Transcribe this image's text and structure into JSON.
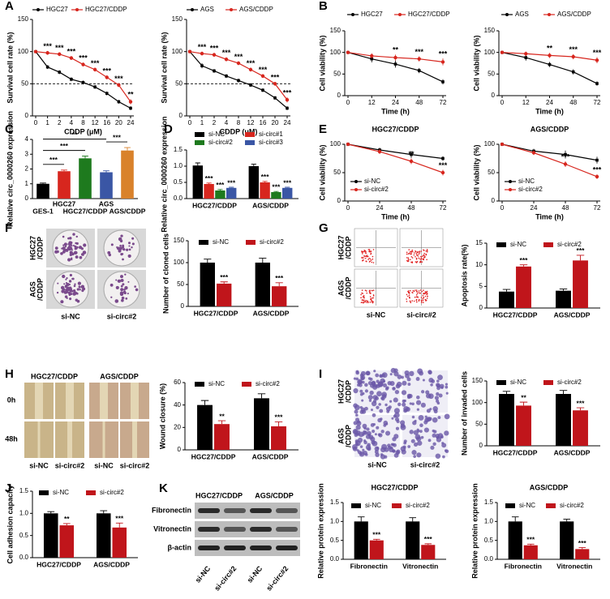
{
  "panel_labels": [
    "A",
    "B",
    "C",
    "D",
    "E",
    "F",
    "G",
    "H",
    "I",
    "J",
    "K"
  ],
  "image_panels": {
    "F": {
      "rows": [
        [
          "HGC27",
          "/CDDP"
        ],
        [
          "AGS",
          "/CDDP"
        ]
      ],
      "cols": [
        "si-NC",
        "si-circ#2"
      ]
    },
    "G": {
      "rows": [
        [
          "HGC27",
          "/CDDP"
        ],
        [
          "AGS",
          "/CDDP"
        ]
      ],
      "cols": [
        "si-NC",
        "si-circ#2"
      ]
    },
    "H": {
      "headers": [
        "HGC27/CDDP",
        "AGS/CDDP"
      ],
      "rows": [
        "0h",
        "48h"
      ],
      "cols": [
        "si-NC",
        "si-circ#2",
        "si-NC",
        "si-circ#2"
      ]
    },
    "I": {
      "rows": [
        [
          "HGC27",
          "/CDDP"
        ],
        [
          "AGS",
          "/CDDP"
        ]
      ],
      "cols": [
        "si-NC",
        "si-circ#2"
      ]
    },
    "K": {
      "headers": [
        "HGC27/CDDP",
        "AGS/CDDP"
      ],
      "rows": [
        "Fibronectin",
        "Vitronectin",
        "β-actin"
      ],
      "cols": [
        "si-NC",
        "si-circ#2",
        "si-NC",
        "si-circ#2"
      ]
    }
  },
  "chart_data": [
    {
      "type": "line",
      "xlabel": "CDDP (μM)",
      "ylabel": "Survival cell rate (%)",
      "categories": [
        "0",
        "1",
        "2",
        "4",
        "8",
        "12",
        "16",
        "20",
        "24"
      ],
      "ylim": [
        0,
        150
      ],
      "yticks": [
        0,
        50,
        100,
        150
      ],
      "reference_line": 50,
      "series": [
        {
          "name": "HGC27",
          "color": "#000000",
          "values": [
            100,
            76,
            68,
            57,
            52,
            45,
            35,
            22,
            12
          ],
          "errors": [
            2,
            3,
            3,
            3,
            3,
            3,
            3,
            3,
            3
          ]
        },
        {
          "name": "HGC27/CDDP",
          "color": "#d7261e",
          "values": [
            100,
            98,
            96,
            90,
            80,
            72,
            60,
            48,
            22
          ],
          "errors": [
            2,
            3,
            3,
            3,
            3,
            3,
            3,
            3,
            4
          ],
          "labels": [
            null,
            "***",
            "***",
            "***",
            "***",
            "***",
            "***",
            "***",
            "**"
          ]
        }
      ]
    },
    {
      "type": "line",
      "xlabel": "CDDP (μM)",
      "ylabel": "Survival cell rate (%)",
      "categories": [
        "0",
        "1",
        "2",
        "4",
        "8",
        "12",
        "16",
        "20",
        "24"
      ],
      "ylim": [
        0,
        150
      ],
      "yticks": [
        0,
        50,
        100,
        150
      ],
      "reference_line": 50,
      "series": [
        {
          "name": "AGS",
          "color": "#000000",
          "values": [
            100,
            78,
            70,
            62,
            55,
            48,
            40,
            28,
            12
          ],
          "errors": [
            2,
            4,
            3,
            3,
            3,
            3,
            3,
            3,
            3
          ]
        },
        {
          "name": "AGS/CDDP",
          "color": "#d7261e",
          "values": [
            100,
            97,
            95,
            88,
            82,
            72,
            62,
            50,
            25
          ],
          "errors": [
            2,
            3,
            3,
            3,
            3,
            3,
            3,
            3,
            4
          ],
          "labels": [
            null,
            "***",
            "***",
            "***",
            "***",
            "***",
            "***",
            "***",
            "***"
          ]
        }
      ]
    },
    {
      "type": "line",
      "xlabel": "Time (h)",
      "ylabel": "Cell viability (%)",
      "categories": [
        "0",
        "12",
        "24",
        "48",
        "72"
      ],
      "ylim": [
        0,
        150
      ],
      "yticks": [
        0,
        50,
        100,
        150
      ],
      "series": [
        {
          "name": "HGC27",
          "color": "#000000",
          "values": [
            100,
            85,
            73,
            58,
            32
          ],
          "errors": [
            2,
            8,
            8,
            6,
            6
          ]
        },
        {
          "name": "HGC27/CDDP",
          "color": "#d7261e",
          "values": [
            100,
            92,
            88,
            85,
            78
          ],
          "errors": [
            2,
            6,
            7,
            6,
            8
          ],
          "labels": [
            null,
            null,
            "**",
            "***",
            "***"
          ]
        }
      ]
    },
    {
      "type": "line",
      "xlabel": "Time (h)",
      "ylabel": "Cell viability (%)",
      "categories": [
        "0",
        "12",
        "24",
        "48",
        "72"
      ],
      "ylim": [
        0,
        150
      ],
      "yticks": [
        0,
        50,
        100,
        150
      ],
      "series": [
        {
          "name": "AGS",
          "color": "#000000",
          "values": [
            100,
            88,
            72,
            55,
            28
          ],
          "errors": [
            2,
            7,
            6,
            6,
            5
          ]
        },
        {
          "name": "AGS/CDDP",
          "color": "#d7261e",
          "values": [
            100,
            97,
            93,
            90,
            82
          ],
          "errors": [
            2,
            5,
            6,
            6,
            7
          ],
          "labels": [
            null,
            null,
            "**",
            "***",
            "***"
          ]
        }
      ]
    },
    {
      "type": "bar",
      "ylabel": "Relative circ_0000260 expression",
      "categories": [
        "GES-1",
        "HGC27",
        "HGC27/CDDP",
        "AGS",
        "AGS/CDDP"
      ],
      "ylim": [
        0,
        4
      ],
      "yticks": [
        0,
        1,
        2,
        3,
        4
      ],
      "values": [
        1.0,
        1.85,
        2.72,
        1.78,
        3.25
      ],
      "errors": [
        0.05,
        0.08,
        0.15,
        0.1,
        0.2
      ],
      "colors": [
        "#000000",
        "#d7261e",
        "#1e7a1e",
        "#3a56a5",
        "#d9822b"
      ],
      "brackets": [
        {
          "from": 0,
          "to": 1,
          "label": "***"
        },
        {
          "from": 0,
          "to": 2,
          "label": "***"
        },
        {
          "from": 0,
          "to": 3,
          "label": "**"
        },
        {
          "from": 3,
          "to": 4,
          "label": "***"
        }
      ]
    },
    {
      "type": "bar",
      "ylabel": "Relative circ_0000260 expression",
      "categories": [
        "HGC27/CDDP",
        "AGS/CDDP"
      ],
      "ylim": [
        0,
        1.5
      ],
      "yticks": [
        {
          "value": 0,
          "label": "0.0"
        },
        0.5,
        {
          "value": 1,
          "label": "1.0"
        },
        1.5
      ],
      "series": [
        {
          "name": "si-NC",
          "color": "#000000",
          "values": [
            1.02,
            1.0
          ],
          "errors": [
            0.08,
            0.06
          ]
        },
        {
          "name": "si-circ#1",
          "color": "#d7261e",
          "values": [
            0.45,
            0.5
          ],
          "errors": [
            0.03,
            0.03
          ],
          "labels": [
            "***",
            "***"
          ]
        },
        {
          "name": "si-circ#2",
          "color": "#1e7a1e",
          "values": [
            0.25,
            0.2
          ],
          "errors": [
            0.03,
            0.02
          ],
          "labels": [
            "***",
            "***"
          ]
        },
        {
          "name": "si-circ#3",
          "color": "#3a56a5",
          "values": [
            0.33,
            0.33
          ],
          "errors": [
            0.02,
            0.02
          ],
          "labels": [
            "***",
            "***"
          ]
        }
      ]
    },
    {
      "type": "line",
      "title": "HGC27/CDDP",
      "xlabel": "Time (h)",
      "ylabel": "Cell viability (%)",
      "categories": [
        "0",
        "24",
        "48",
        "72"
      ],
      "ylim": [
        0,
        100
      ],
      "yticks": [
        0,
        50,
        100
      ],
      "series": [
        {
          "name": "si-NC",
          "color": "#000000",
          "values": [
            100,
            90,
            82,
            75
          ],
          "errors": [
            1,
            4,
            6,
            4
          ]
        },
        {
          "name": "si-circ#2",
          "color": "#d7261e",
          "values": [
            100,
            87,
            70,
            50
          ],
          "errors": [
            1,
            4,
            5,
            5
          ],
          "labels": [
            null,
            null,
            "**",
            "***"
          ]
        }
      ]
    },
    {
      "type": "line",
      "title": "AGS/CDDP",
      "xlabel": "Time (h)",
      "ylabel": "Cell viability (%)",
      "categories": [
        "0",
        "24",
        "48",
        "72"
      ],
      "ylim": [
        0,
        100
      ],
      "yticks": [
        0,
        50,
        100
      ],
      "series": [
        {
          "name": "si-NC",
          "color": "#000000",
          "values": [
            100,
            88,
            82,
            72
          ],
          "errors": [
            1,
            4,
            7,
            6
          ]
        },
        {
          "name": "si-circ#2",
          "color": "#d7261e",
          "values": [
            100,
            85,
            65,
            43
          ],
          "errors": [
            1,
            4,
            5,
            4
          ],
          "labels": [
            null,
            null,
            "***",
            "***"
          ]
        }
      ]
    },
    {
      "type": "bar",
      "ylabel": "Number of cloned cells",
      "categories": [
        "HGC27/CDDP",
        "AGS/CDDP"
      ],
      "ylim": [
        0,
        150
      ],
      "yticks": [
        0,
        50,
        100,
        150
      ],
      "series": [
        {
          "name": "si-NC",
          "color": "#000000",
          "values": [
            100,
            100
          ],
          "errors": [
            8,
            10
          ]
        },
        {
          "name": "si-circ#2",
          "color": "#c0151b",
          "values": [
            52,
            46
          ],
          "errors": [
            4,
            8
          ],
          "labels": [
            "***",
            "***"
          ]
        }
      ]
    },
    {
      "type": "bar",
      "ylabel": "Apoptosis rate(%)",
      "categories": [
        "HGC27/CDDP",
        "AGS/CDDP"
      ],
      "ylim": [
        0,
        15
      ],
      "yticks": [
        0,
        5,
        10,
        15
      ],
      "series": [
        {
          "name": "si-NC",
          "color": "#000000",
          "values": [
            3.8,
            4.0
          ],
          "errors": [
            0.5,
            0.4
          ]
        },
        {
          "name": "si-circ#2",
          "color": "#c0151b",
          "values": [
            9.6,
            11.0
          ],
          "errors": [
            0.4,
            1.2
          ],
          "labels": [
            "***",
            "***"
          ]
        }
      ]
    },
    {
      "type": "bar",
      "ylabel": "Wound closure (%)",
      "categories": [
        "HGC27/CDDP",
        "AGS/CDDP"
      ],
      "ylim": [
        0,
        60
      ],
      "yticks": [
        0,
        20,
        40,
        60
      ],
      "series": [
        {
          "name": "si-NC",
          "color": "#000000",
          "values": [
            40,
            46
          ],
          "errors": [
            4,
            4
          ]
        },
        {
          "name": "si-circ#2",
          "color": "#c0151b",
          "values": [
            23,
            21
          ],
          "errors": [
            3,
            4
          ],
          "labels": [
            "**",
            "***"
          ]
        }
      ]
    },
    {
      "type": "bar",
      "ylabel": "Number of invaded cells",
      "categories": [
        "HGC27/CDDP",
        "AGS/CDDP"
      ],
      "ylim": [
        0,
        150
      ],
      "yticks": [
        0,
        50,
        100,
        150
      ],
      "series": [
        {
          "name": "si-NC",
          "color": "#000000",
          "values": [
            120,
            120
          ],
          "errors": [
            6,
            8
          ]
        },
        {
          "name": "si-circ#2",
          "color": "#c0151b",
          "values": [
            93,
            82
          ],
          "errors": [
            8,
            6
          ],
          "labels": [
            "**",
            "***"
          ]
        }
      ]
    },
    {
      "type": "bar",
      "ylabel": "Cell adhesion capacity",
      "categories": [
        "HGC27/CDDP",
        "AGS/CDDP"
      ],
      "ylim": [
        0,
        1.5
      ],
      "yticks": [
        {
          "value": 0,
          "label": "0.0"
        },
        0.5,
        {
          "value": 1,
          "label": "1.0"
        },
        1.5
      ],
      "series": [
        {
          "name": "si-NC",
          "color": "#000000",
          "values": [
            1.0,
            1.0
          ],
          "errors": [
            0.04,
            0.06
          ]
        },
        {
          "name": "si-circ#2",
          "color": "#c0151b",
          "values": [
            0.73,
            0.68
          ],
          "errors": [
            0.04,
            0.1
          ],
          "labels": [
            "**",
            "***"
          ]
        }
      ]
    },
    {
      "type": "bar",
      "title": "HGC27/CDDP",
      "ylabel": "Relative protein expression",
      "categories": [
        "Fibronectin",
        "Vitronectin"
      ],
      "ylim": [
        0,
        1.5
      ],
      "yticks": [
        {
          "value": 0,
          "label": "0.0"
        },
        0.5,
        {
          "value": 1,
          "label": "1.0"
        },
        1.5
      ],
      "series": [
        {
          "name": "si-NC",
          "color": "#000000",
          "values": [
            1.0,
            1.0
          ],
          "errors": [
            0.12,
            0.1
          ]
        },
        {
          "name": "si-circ#2",
          "color": "#c0151b",
          "values": [
            0.5,
            0.38
          ],
          "errors": [
            0.03,
            0.03
          ],
          "labels": [
            "***",
            "***"
          ]
        }
      ]
    },
    {
      "type": "bar",
      "title": "AGS/CDDP",
      "ylabel": "Relative protein expression",
      "categories": [
        "Fibronectin",
        "Vitronectin"
      ],
      "ylim": [
        0,
        1.5
      ],
      "yticks": [
        {
          "value": 0,
          "label": "0.0"
        },
        0.5,
        {
          "value": 1,
          "label": "1.0"
        },
        1.5
      ],
      "series": [
        {
          "name": "si-NC",
          "color": "#000000",
          "values": [
            1.0,
            1.0
          ],
          "errors": [
            0.12,
            0.06
          ]
        },
        {
          "name": "si-circ#2",
          "color": "#c0151b",
          "values": [
            0.37,
            0.27
          ],
          "errors": [
            0.03,
            0.04
          ],
          "labels": [
            "***",
            "***"
          ]
        }
      ]
    }
  ]
}
